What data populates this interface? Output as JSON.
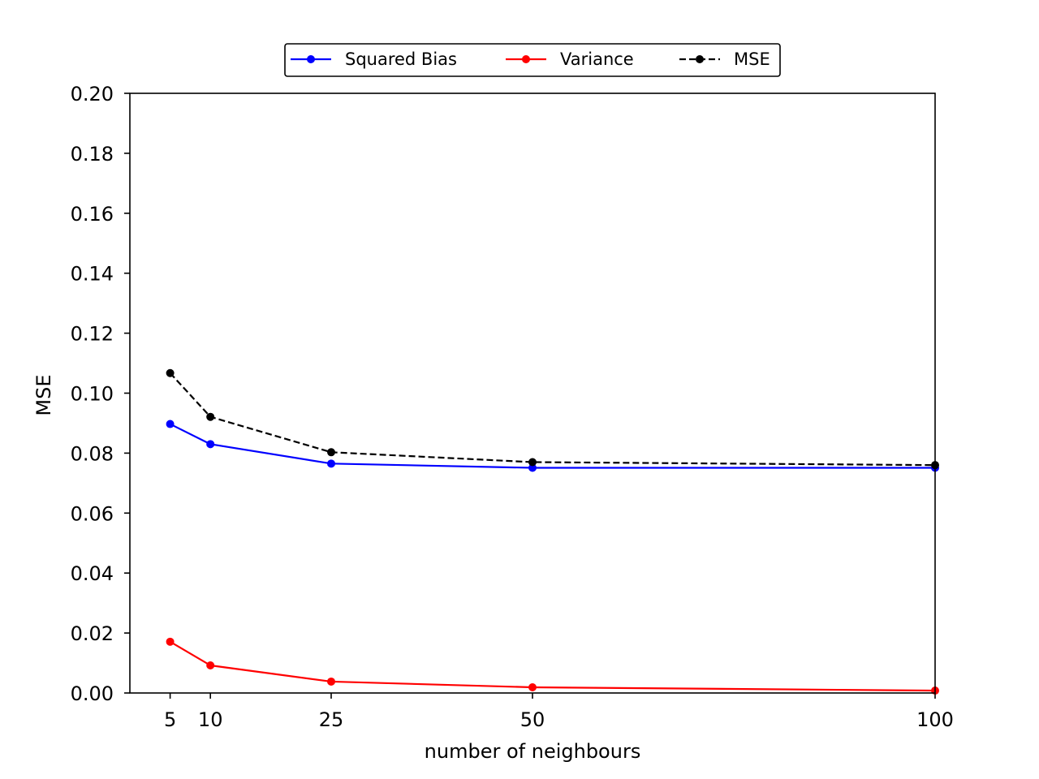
{
  "chart_data": {
    "type": "line",
    "title": "",
    "xlabel": "number of neighbours",
    "ylabel": "MSE",
    "x": [
      5,
      10,
      25,
      50,
      100
    ],
    "xlim": [
      0,
      100
    ],
    "ylim": [
      0,
      0.2
    ],
    "xticks": [
      5,
      10,
      25,
      50,
      100
    ],
    "xtick_labels": [
      "5",
      "10",
      "25",
      "50",
      "100"
    ],
    "yticks": [
      0.0,
      0.02,
      0.04,
      0.06,
      0.08,
      0.1,
      0.12,
      0.14,
      0.16,
      0.18,
      0.2
    ],
    "ytick_labels": [
      "0.00",
      "0.02",
      "0.04",
      "0.06",
      "0.08",
      "0.10",
      "0.12",
      "0.14",
      "0.16",
      "0.18",
      "0.20"
    ],
    "grid": false,
    "legend": {
      "placement": "top-center",
      "ncol": 3
    },
    "series": [
      {
        "name": "Squared Bias",
        "color": "#0000ff",
        "linestyle": "solid",
        "marker": "circle",
        "values": [
          0.0897,
          0.083,
          0.0765,
          0.0751,
          0.0751
        ]
      },
      {
        "name": "Variance",
        "color": "#ff0000",
        "linestyle": "solid",
        "marker": "circle",
        "values": [
          0.0171,
          0.0092,
          0.0038,
          0.0019,
          0.0008
        ]
      },
      {
        "name": "MSE",
        "color": "#000000",
        "linestyle": "dashed",
        "marker": "circle",
        "values": [
          0.1067,
          0.0921,
          0.0803,
          0.077,
          0.076
        ]
      }
    ]
  }
}
